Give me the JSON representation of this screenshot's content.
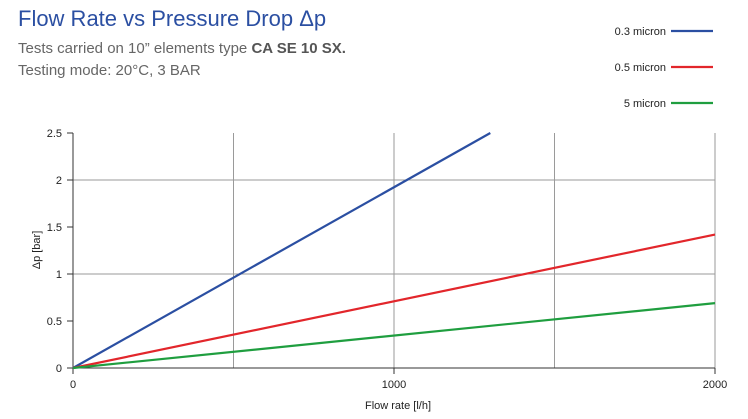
{
  "header": {
    "title": "Flow Rate vs Pressure Drop Δp",
    "subtitle_prefix": "Tests carried on 10” elements type ",
    "subtitle_bold": "CA SE 10 SX.",
    "subtitle2": "Testing mode: 20°C, 3 BAR"
  },
  "chart_data": {
    "type": "line",
    "title": "Flow Rate vs Pressure Drop Δp",
    "xlabel": "Flow rate [l/h]",
    "ylabel": "Δp [bar]",
    "xlim": [
      0,
      2000
    ],
    "ylim": [
      0,
      2.5
    ],
    "x_ticks": [
      0,
      1000,
      2000
    ],
    "x_tick_labels": [
      "0",
      "1000",
      "2000"
    ],
    "y_ticks": [
      0,
      0.5,
      1,
      1.5,
      2,
      2.5
    ],
    "y_tick_labels": [
      "0",
      "0.5",
      "1",
      "1.5",
      "2",
      "2.5"
    ],
    "grid_x": [
      0,
      500,
      1000,
      1500,
      2000
    ],
    "grid_y": [
      0,
      1,
      2
    ],
    "grid": true,
    "legend_position": "top-right",
    "series": [
      {
        "name": "0.3 micron",
        "color": "#2b4fa2",
        "x": [
          0,
          1300
        ],
        "y": [
          0,
          2.5
        ]
      },
      {
        "name": "0.5 micron",
        "color": "#e2262b",
        "x": [
          0,
          2000
        ],
        "y": [
          0,
          1.42
        ]
      },
      {
        "name": "5 micron",
        "color": "#1f9e3f",
        "x": [
          0,
          2000
        ],
        "y": [
          0,
          0.69
        ]
      }
    ]
  }
}
